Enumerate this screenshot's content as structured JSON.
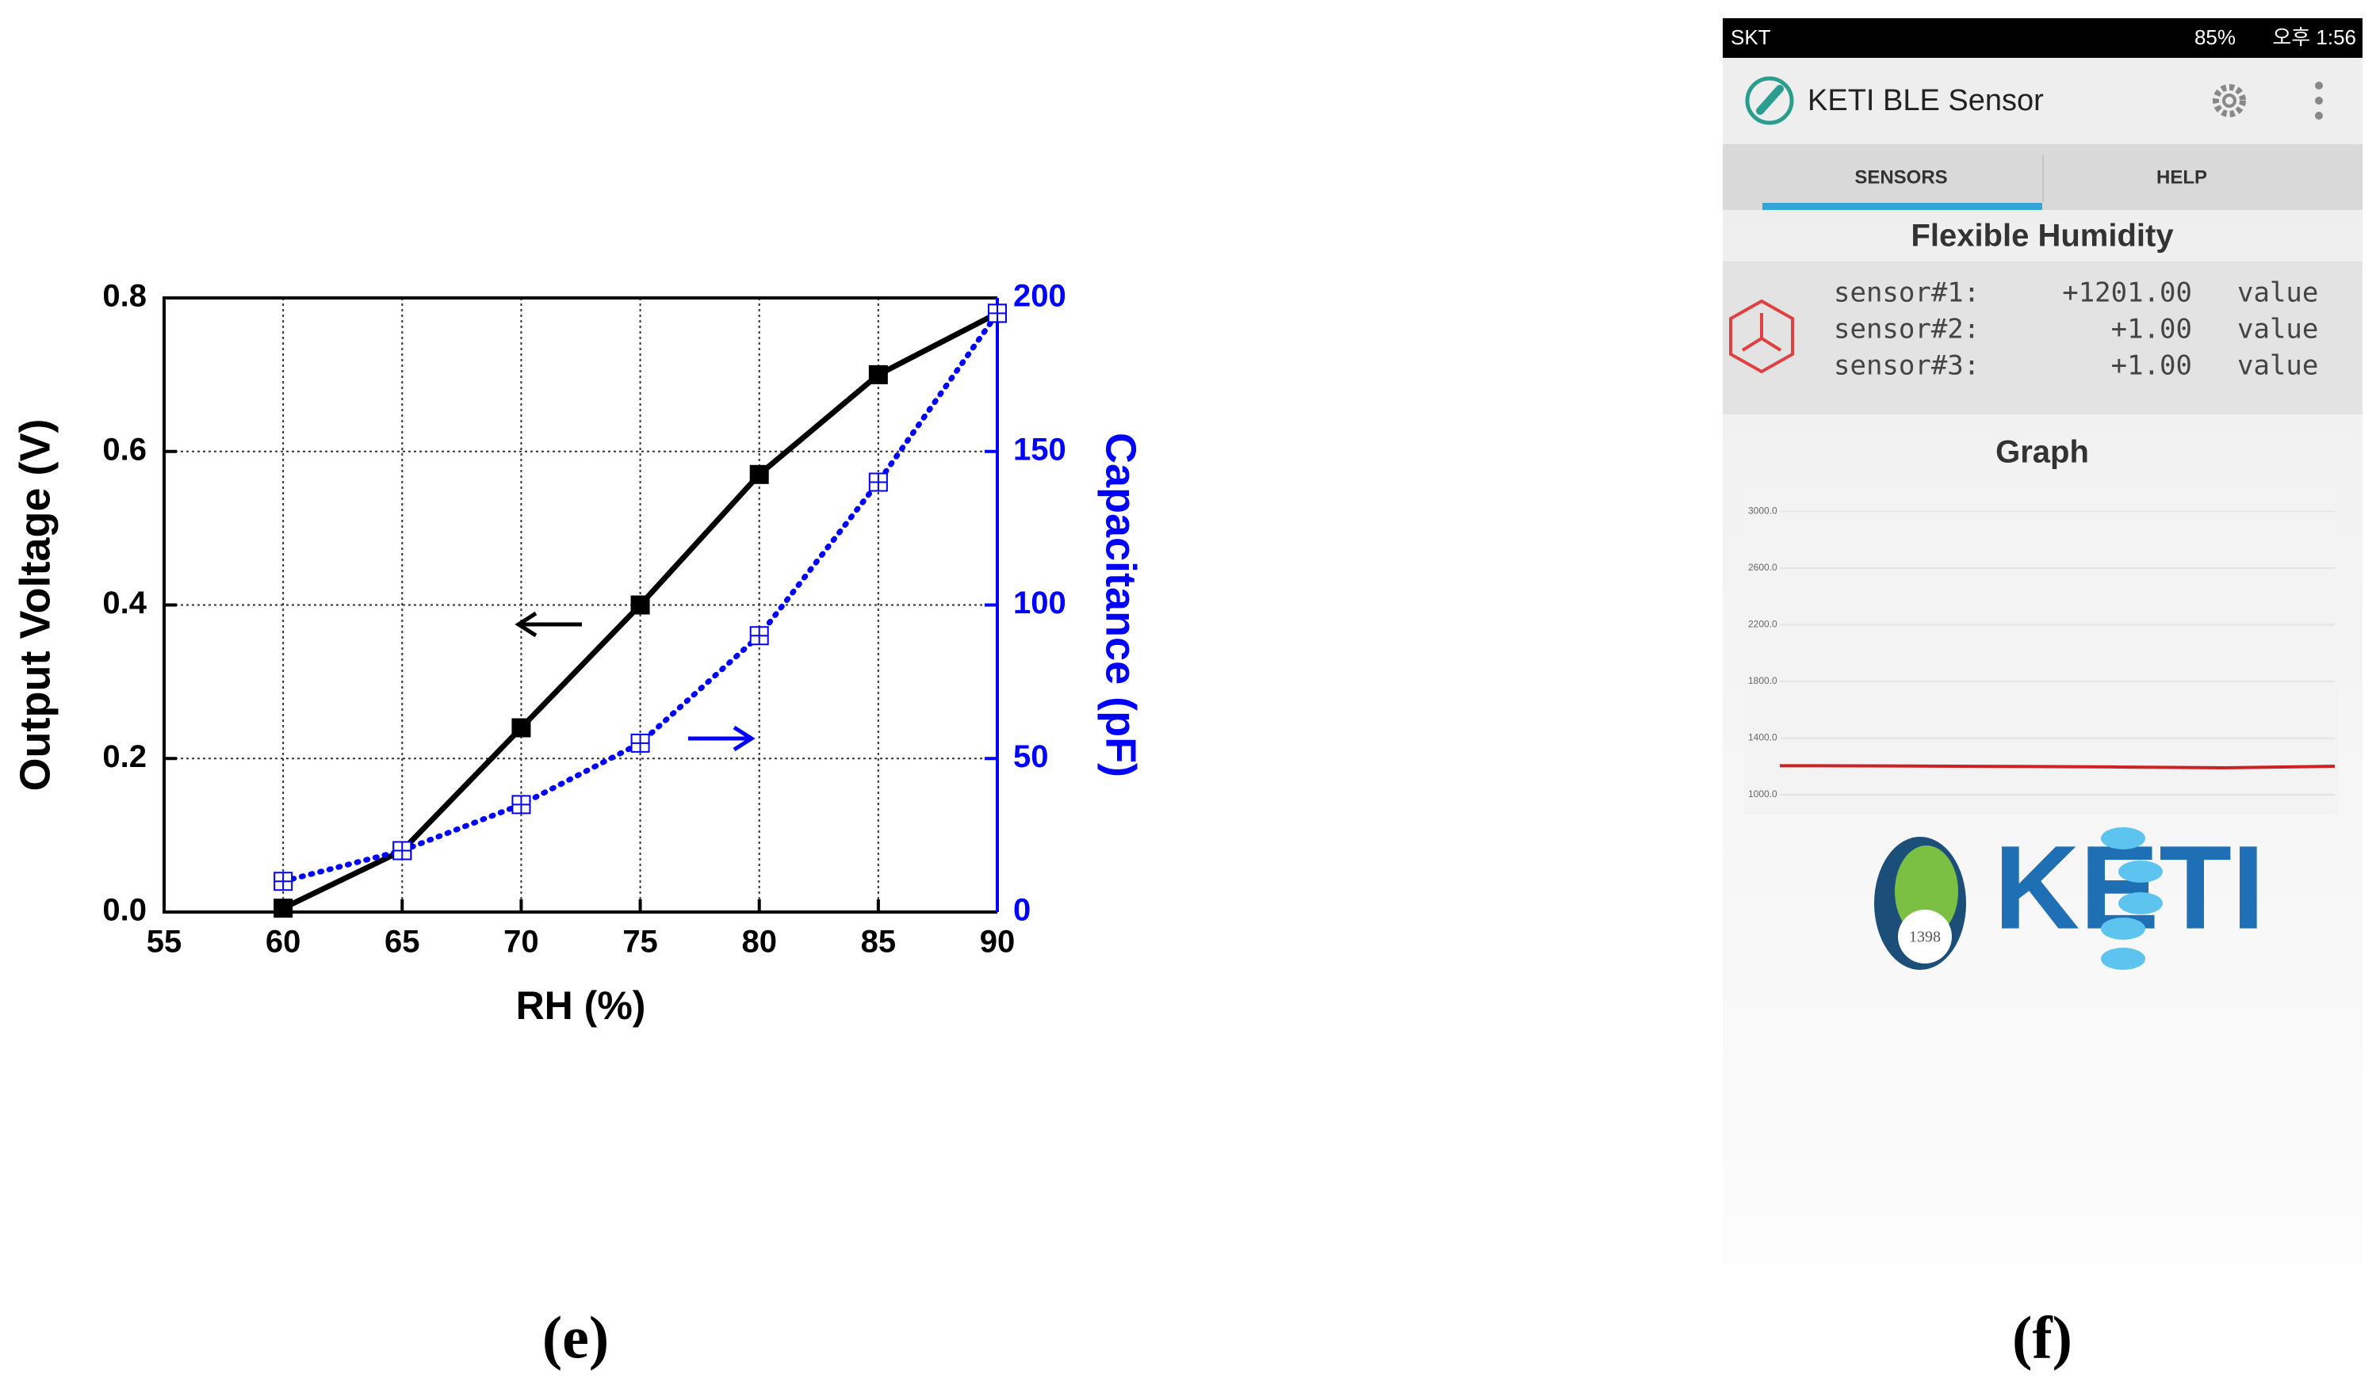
{
  "chart_data": {
    "type": "line",
    "x": [
      60,
      65,
      70,
      75,
      80,
      85,
      90
    ],
    "xlabel": "RH (%)",
    "ylabel": "Output Voltage (V)",
    "y2label": "Capacitance (pF)",
    "xlim": [
      55,
      90
    ],
    "xticks": [
      55,
      60,
      65,
      70,
      75,
      80,
      85,
      90
    ],
    "ylim": [
      0,
      0.8
    ],
    "yticks": [
      {
        "value": 0,
        "label": "0.0"
      },
      {
        "value": 0.2,
        "label": "0.2"
      },
      {
        "value": 0.4,
        "label": "0.4"
      },
      {
        "value": 0.6,
        "label": "0.6"
      },
      {
        "value": 0.8,
        "label": "0.8"
      }
    ],
    "y2lim": [
      0,
      200
    ],
    "y2ticks": [
      0,
      50,
      100,
      150,
      200
    ],
    "grid": true,
    "series": [
      {
        "color": "#000000",
        "values": [
          0.005,
          0.08,
          0.24,
          0.4,
          0.57,
          0.7,
          0.78
        ]
      },
      {
        "color": "#0000ff",
        "axis": "y2",
        "values": [
          10,
          20,
          35,
          55,
          90,
          140,
          195
        ]
      }
    ]
  },
  "panel_labels": [
    "(e)",
    "(f)"
  ],
  "phone": {
    "status": {
      "carrier": "SKT",
      "battery": "85%",
      "time": "오후 1:56"
    },
    "app_title": "KETI BLE Sensor",
    "tabs": [
      "SENSORS",
      "HELP"
    ],
    "section_title": "Flexible Humidity",
    "sensors": [
      {
        "name": "sensor#1:",
        "value": "+1201.00",
        "unit": "value"
      },
      {
        "name": "sensor#2:",
        "value": "+1.00",
        "unit": "value"
      },
      {
        "name": "sensor#3:",
        "value": "+1.00",
        "unit": "value"
      }
    ],
    "graph": {
      "title": "Graph",
      "ylim": [
        860,
        3170
      ],
      "yticks": [
        {
          "value": 3000,
          "label": "3000.0"
        },
        {
          "value": 2600,
          "label": "2600.0"
        },
        {
          "value": 2200,
          "label": "2200.0"
        },
        {
          "value": 1800,
          "label": "1800.0"
        },
        {
          "value": 1400,
          "label": "1400.0"
        },
        {
          "value": 1000,
          "label": "1000.0"
        }
      ],
      "values": [
        1205,
        1203,
        1200,
        1196,
        1190,
        1201
      ]
    },
    "logo": {
      "text": "KETI",
      "year": "1398"
    }
  }
}
